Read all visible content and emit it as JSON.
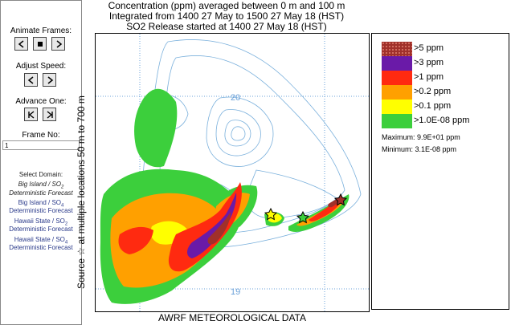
{
  "controls": {
    "animate_label": "Animate Frames:",
    "speed_label": "Adjust Speed:",
    "advance_label": "Advance One:",
    "frame_label": "Frame No:",
    "frame_value": "1"
  },
  "domain": {
    "heading": "Select Domain:",
    "selected_1": "Big Island / SO",
    "selected_sub": "2",
    "selected_2": "Deterministic Forecast",
    "links": [
      {
        "a": "Big Island / SO",
        "sub": "4",
        "b": "Deterministic Forecast"
      },
      {
        "a": "Hawaii State / SO",
        "sub": "2",
        "b": "Deterministic Forecast"
      },
      {
        "a": "Hawaii State / SO",
        "sub": "4",
        "b": "Deterministic Forecast"
      }
    ]
  },
  "header": {
    "line1": "Concentration  (ppm) averaged between     0 m and    100 m",
    "line2": "Integrated from 1400 27 May to 1500 27 May 18 (HST)",
    "line3": "SO2  Release started at 1400 27 May 18 (HST)"
  },
  "map": {
    "ylabel": "Source ☆ at multiple locations    50 m to   700 m",
    "xlabel": "AWRF METEOROLOGICAL DATA",
    "lat_20": "20",
    "lat_19": "19"
  },
  "legend": {
    "items": [
      {
        "label": ">5  ppm",
        "color": "#a0302a"
      },
      {
        "label": ">3  ppm",
        "color": "#6a1aa8"
      },
      {
        "label": ">1  ppm",
        "color": "#ff2a10"
      },
      {
        "label": ">0.2  ppm",
        "color": "#ffa000"
      },
      {
        "label": ">0.1  ppm",
        "color": "#ffff00"
      },
      {
        "label": ">1.0E-08  ppm",
        "color": "#3ccf3c"
      }
    ],
    "maximum": "Maximum:  9.9E+01  ppm",
    "minimum": "Minimum:  3.1E-08  ppm"
  }
}
